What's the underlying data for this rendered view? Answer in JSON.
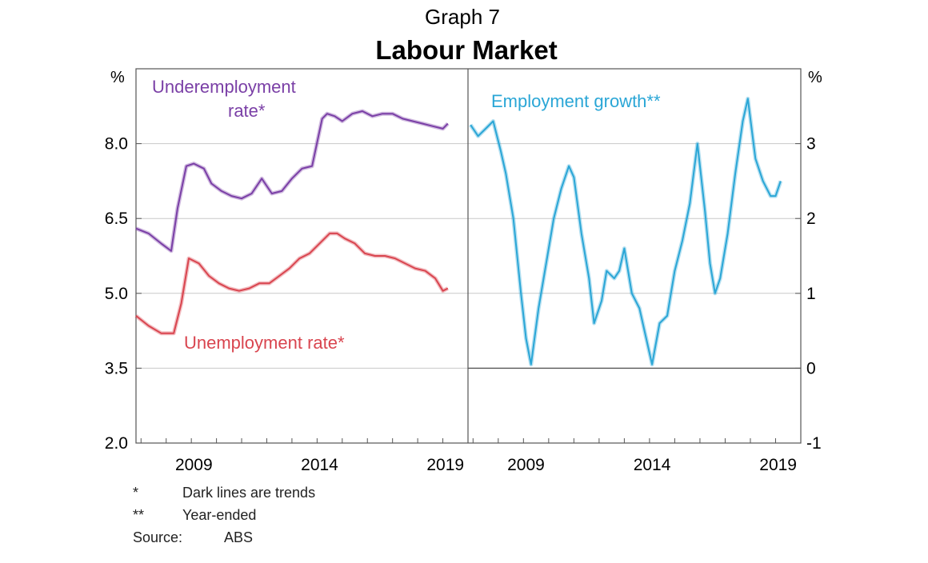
{
  "header": {
    "graph_number": "Graph 7",
    "title": "Labour Market"
  },
  "notes": [
    {
      "marker": "*",
      "text": "Dark lines are trends"
    },
    {
      "marker": "**",
      "text": "Year-ended"
    },
    {
      "marker": "Source:",
      "text": "ABS"
    }
  ],
  "colors": {
    "underemployment": "#7a3fa6",
    "unemployment": "#d9454f",
    "employment_growth": "#2aa6d6",
    "gridline": "#c8c8c8",
    "axis": "#555555"
  },
  "chart_data": [
    {
      "type": "line",
      "panel": "left",
      "title": "",
      "xlabel": "",
      "ylabel": "%",
      "xlim": [
        2006.8,
        2020.0
      ],
      "ylim": [
        2.0,
        9.5
      ],
      "y_ticks": [
        "2.0",
        "3.5",
        "5.0",
        "6.5",
        "8.0"
      ],
      "x_ticks": [
        "2009",
        "2014",
        "2019"
      ],
      "grid": true,
      "series": [
        {
          "name": "Underemployment rate*",
          "color": "#7a3fa6",
          "x": [
            2006.8,
            2007.3,
            2007.8,
            2008.2,
            2008.45,
            2008.8,
            2009.1,
            2009.5,
            2009.8,
            2010.2,
            2010.6,
            2011.0,
            2011.4,
            2011.8,
            2012.2,
            2012.6,
            2013.0,
            2013.4,
            2013.8,
            2014.2,
            2014.4,
            2014.7,
            2015.0,
            2015.4,
            2015.8,
            2016.2,
            2016.6,
            2017.0,
            2017.4,
            2017.8,
            2018.2,
            2018.6,
            2019.0,
            2019.2
          ],
          "y": [
            6.3,
            6.2,
            6.0,
            5.85,
            6.7,
            7.55,
            7.6,
            7.5,
            7.2,
            7.05,
            6.95,
            6.9,
            7.0,
            7.3,
            7.0,
            7.05,
            7.3,
            7.5,
            7.55,
            8.5,
            8.6,
            8.55,
            8.45,
            8.6,
            8.65,
            8.55,
            8.6,
            8.6,
            8.5,
            8.45,
            8.4,
            8.35,
            8.3,
            8.4
          ]
        },
        {
          "name": "Unemployment rate*",
          "color": "#d9454f",
          "x": [
            2006.8,
            2007.3,
            2007.8,
            2008.3,
            2008.6,
            2008.9,
            2009.3,
            2009.7,
            2010.1,
            2010.5,
            2010.9,
            2011.3,
            2011.7,
            2012.1,
            2012.5,
            2012.9,
            2013.3,
            2013.7,
            2014.1,
            2014.5,
            2014.8,
            2015.1,
            2015.5,
            2015.9,
            2016.3,
            2016.7,
            2017.1,
            2017.5,
            2017.9,
            2018.3,
            2018.7,
            2019.0,
            2019.2
          ],
          "y": [
            4.55,
            4.35,
            4.2,
            4.2,
            4.8,
            5.7,
            5.6,
            5.35,
            5.2,
            5.1,
            5.05,
            5.1,
            5.2,
            5.2,
            5.35,
            5.5,
            5.7,
            5.8,
            6.0,
            6.2,
            6.2,
            6.1,
            6.0,
            5.8,
            5.75,
            5.75,
            5.7,
            5.6,
            5.5,
            5.45,
            5.3,
            5.05,
            5.1
          ]
        }
      ],
      "annotations": [
        {
          "text": "Underemployment rate*",
          "lines": [
            "Underemployment",
            "rate*"
          ],
          "series": "Underemployment rate*"
        },
        {
          "text": "Unemployment rate*",
          "series": "Unemployment rate*"
        }
      ]
    },
    {
      "type": "line",
      "panel": "right",
      "title": "",
      "xlabel": "",
      "ylabel": "%",
      "xlim": [
        2006.8,
        2020.0
      ],
      "ylim": [
        -1,
        4
      ],
      "y_ticks": [
        "-1",
        "0",
        "1",
        "2",
        "3"
      ],
      "x_ticks": [
        "2009",
        "2014",
        "2019"
      ],
      "grid": true,
      "series": [
        {
          "name": "Employment growth**",
          "color": "#2aa6d6",
          "x": [
            2006.9,
            2007.2,
            2007.5,
            2007.8,
            2008.1,
            2008.3,
            2008.6,
            2008.9,
            2009.1,
            2009.3,
            2009.6,
            2009.9,
            2010.2,
            2010.5,
            2010.8,
            2011.0,
            2011.3,
            2011.6,
            2011.8,
            2012.1,
            2012.3,
            2012.6,
            2012.8,
            2013.0,
            2013.3,
            2013.6,
            2013.8,
            2014.1,
            2014.4,
            2014.7,
            2015.0,
            2015.3,
            2015.6,
            2015.9,
            2016.2,
            2016.4,
            2016.6,
            2016.8,
            2017.1,
            2017.4,
            2017.7,
            2017.9,
            2018.2,
            2018.5,
            2018.8,
            2019.0,
            2019.2
          ],
          "y": [
            3.25,
            3.1,
            3.2,
            3.3,
            2.9,
            2.6,
            2.0,
            1.0,
            0.4,
            0.05,
            0.8,
            1.4,
            2.0,
            2.4,
            2.7,
            2.55,
            1.8,
            1.2,
            0.6,
            0.9,
            1.3,
            1.2,
            1.3,
            1.6,
            1.0,
            0.8,
            0.5,
            0.05,
            0.6,
            0.7,
            1.3,
            1.7,
            2.2,
            3.0,
            2.1,
            1.4,
            1.0,
            1.2,
            1.8,
            2.6,
            3.3,
            3.6,
            2.8,
            2.5,
            2.3,
            2.3,
            2.5
          ]
        }
      ],
      "annotations": [
        {
          "text": "Employment growth**",
          "series": "Employment growth**"
        }
      ]
    }
  ]
}
